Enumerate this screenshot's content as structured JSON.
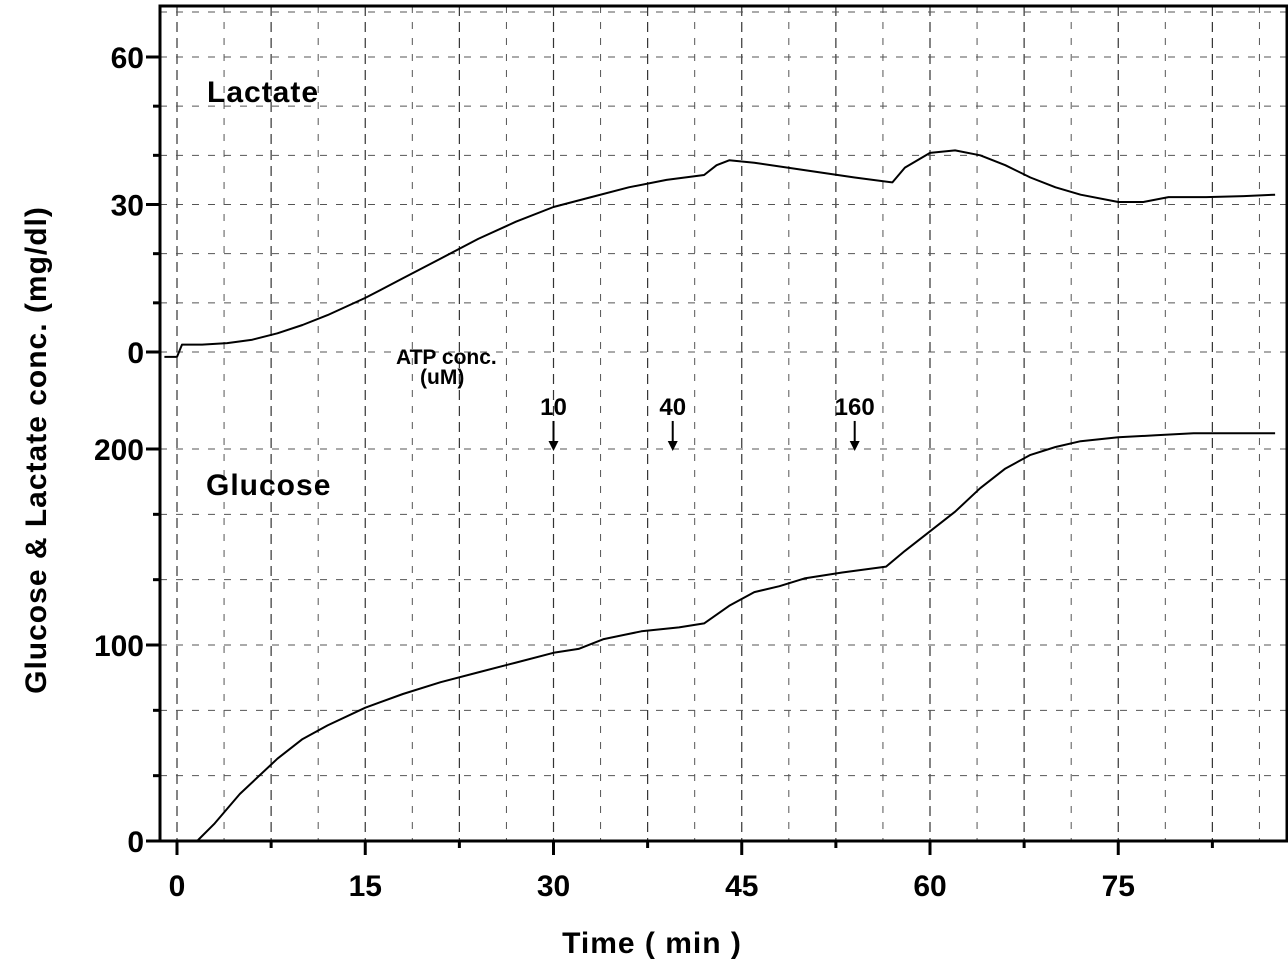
{
  "chart_data": {
    "type": "line",
    "title": "",
    "xlabel": "Time ( min )",
    "ylabel": "Glucose & Lactate conc. (mg/dl)",
    "xlim": [
      -3,
      89
    ],
    "x_ticks": [
      "0",
      "15",
      "30",
      "45",
      "60",
      "75"
    ],
    "grid": true,
    "legend": "none",
    "panels": [
      {
        "name": "lactate",
        "label": "Lactate",
        "ylim": [
          0,
          60
        ],
        "y_ticks": [
          "0",
          "30",
          "60"
        ],
        "series": [
          {
            "name": "Lactate",
            "x": [
              -1,
              0,
              0.4,
              2,
              4,
              6,
              8,
              10,
              12,
              15,
              18,
              21,
              24,
              27,
              30,
              33,
              36,
              39,
              42,
              43,
              44,
              46,
              50,
              54,
              57,
              58,
              60,
              62,
              64,
              66,
              68,
              70,
              72,
              75,
              77,
              79,
              82,
              85,
              87.5
            ],
            "y": [
              -1,
              -1,
              1.5,
              1.5,
              1.8,
              2.5,
              3.8,
              5.5,
              7.5,
              11,
              15,
              19,
              23,
              26.5,
              29.5,
              31.5,
              33.5,
              35,
              36,
              38,
              39,
              38.5,
              37,
              35.5,
              34.5,
              37.5,
              40.5,
              41,
              40,
              38,
              35.5,
              33.5,
              32,
              30.5,
              30.5,
              31.5,
              31.5,
              31.7,
              32
            ]
          }
        ]
      },
      {
        "name": "glucose",
        "label": "Glucose",
        "ylim": [
          0,
          200
        ],
        "y_ticks": [
          "0",
          "100",
          "200"
        ],
        "series": [
          {
            "name": "Glucose",
            "x": [
              -1,
              1.6,
              3,
              5,
              8,
              10,
              12,
              15,
              18,
              21,
              24,
              27,
              30,
              32,
              34,
              37,
              40,
              42,
              44,
              46,
              48,
              50,
              53,
              56.5,
              58,
              60,
              62,
              64,
              66,
              68,
              70,
              72,
              75,
              78,
              81,
              84,
              87.5
            ],
            "y": [
              0,
              0,
              9,
              24,
              42,
              52,
              59,
              68,
              75,
              81,
              86,
              91,
              96,
              98,
              103,
              107,
              109,
              111,
              120,
              127,
              130,
              134,
              137,
              140,
              148,
              158,
              168,
              180,
              190,
              197,
              201,
              204,
              206,
              207,
              208,
              208,
              208
            ]
          }
        ]
      }
    ],
    "annotations": {
      "atp_label": "ATP conc.",
      "atp_unit": "(uM)",
      "arrows": [
        {
          "label": "10",
          "x": 30,
          "panel": "glucose",
          "y": 199
        },
        {
          "label": "40",
          "x": 39.5,
          "panel": "glucose",
          "y": 199
        },
        {
          "label": "160",
          "x": 54,
          "panel": "glucose",
          "y": 199
        }
      ]
    }
  }
}
